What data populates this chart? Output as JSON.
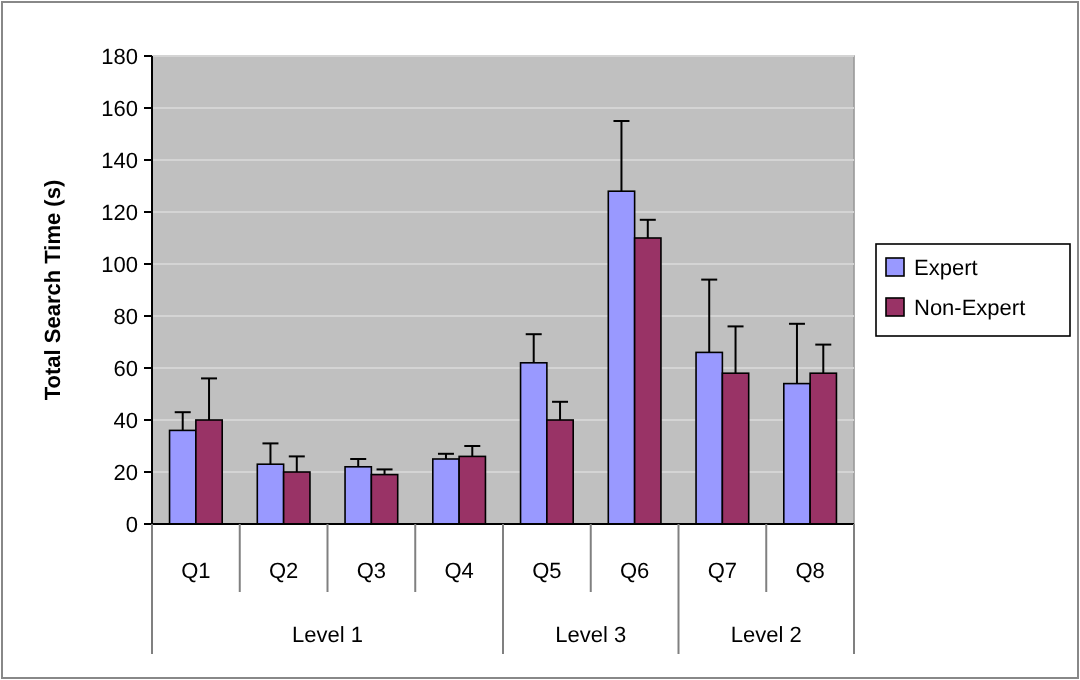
{
  "chart_data": {
    "type": "bar",
    "ylabel": "Total Search Time (s)",
    "categories": [
      "Q1",
      "Q2",
      "Q3",
      "Q4",
      "Q5",
      "Q6",
      "Q7",
      "Q8"
    ],
    "series": [
      {
        "name": "Expert",
        "color": "#9999ff",
        "values": [
          36,
          23,
          22,
          25,
          62,
          128,
          66,
          54
        ],
        "errors": [
          [
            36,
            43
          ],
          [
            23,
            31
          ],
          [
            22,
            25
          ],
          [
            25,
            27
          ],
          [
            62,
            73
          ],
          [
            128,
            155
          ],
          [
            66,
            94
          ],
          [
            54,
            77
          ]
        ]
      },
      {
        "name": "Non-Expert",
        "color": "#993366",
        "values": [
          40,
          20,
          19,
          26,
          40,
          110,
          58,
          58
        ],
        "errors": [
          [
            40,
            56
          ],
          [
            20,
            26
          ],
          [
            19,
            21
          ],
          [
            26,
            30
          ],
          [
            40,
            47
          ],
          [
            110,
            117
          ],
          [
            58,
            76
          ],
          [
            58,
            69
          ]
        ]
      }
    ],
    "annotations": [
      "Level 1",
      "Level 3",
      "Level 2"
    ],
    "ylim": [
      0,
      180
    ],
    "yticks": [
      0,
      20,
      40,
      60,
      80,
      100,
      120,
      140,
      160,
      180
    ],
    "grid": "y",
    "legend": "right"
  }
}
